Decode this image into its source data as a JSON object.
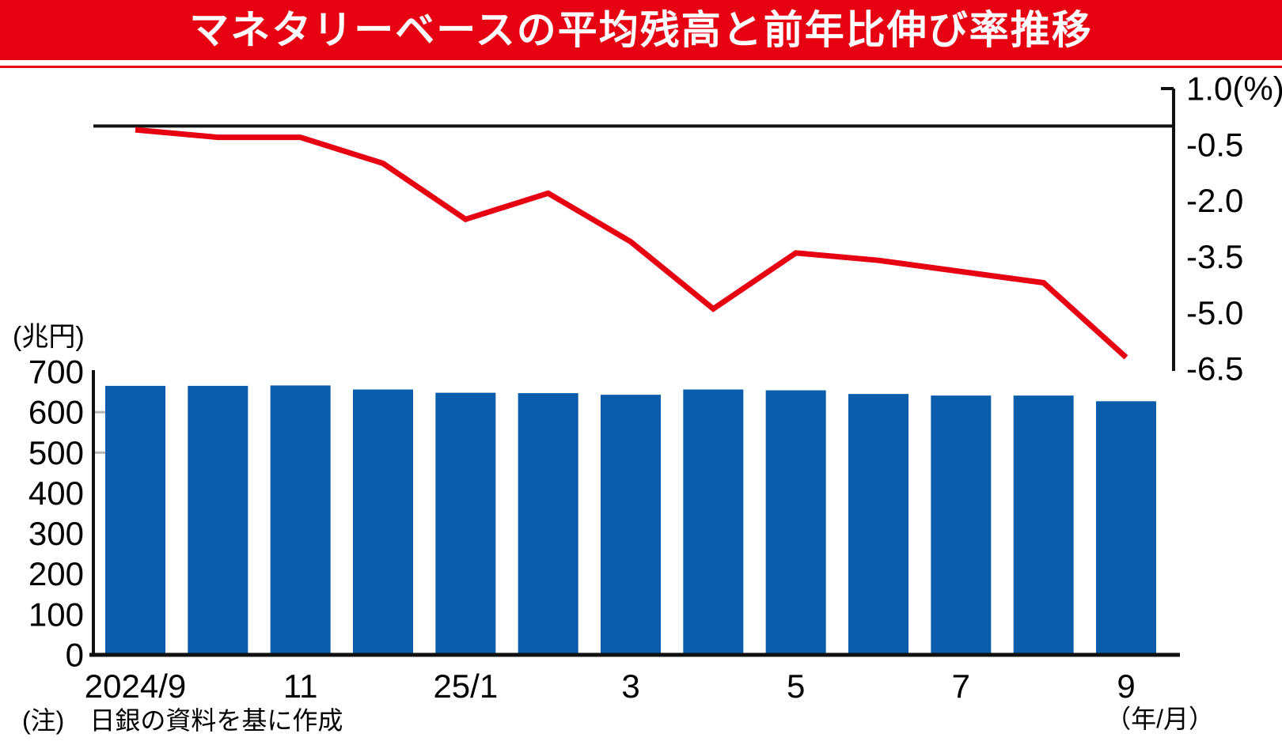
{
  "title": "マネタリーベースの平均残高と前年比伸び率推移",
  "note": "(注)　日銀の資料を基に作成",
  "x_axis_unit": "（年/月）",
  "left_axis_unit": "(兆円)",
  "colors": {
    "banner_red": "#e60012",
    "bar_blue": "#0a5dab",
    "line_red": "#e60012",
    "axis_black": "#111111",
    "minor_tick_gray": "#b5b5b5"
  },
  "chart_data": {
    "type": "bar+line dual-axis",
    "categories": [
      "2024/9",
      "2024/10",
      "2024/11",
      "2024/12",
      "2025/1",
      "2025/2",
      "2025/3",
      "2025/4",
      "2025/5",
      "2025/6",
      "2025/7",
      "2025/8",
      "2025/9"
    ],
    "series": [
      {
        "name": "マネタリーベース平均残高",
        "type": "bar",
        "axis": "left",
        "unit": "兆円",
        "values": [
          665,
          665,
          666,
          656,
          648,
          647,
          643,
          656,
          654,
          645,
          641,
          641,
          627
        ]
      },
      {
        "name": "前年比伸び率",
        "type": "line",
        "axis": "right",
        "unit": "%",
        "values": [
          -0.1,
          -0.3,
          -0.3,
          -1.0,
          -2.5,
          -1.8,
          -3.1,
          -4.9,
          -3.4,
          -3.6,
          -3.9,
          -4.2,
          -6.2
        ]
      }
    ],
    "left_axis": {
      "unit_label": "(兆円)",
      "min": 0,
      "max": 700,
      "ticks": [
        0,
        100,
        200,
        300,
        400,
        500,
        600,
        700
      ],
      "minor_marked_ticks": [
        500,
        600
      ]
    },
    "right_axis": {
      "min": -6.5,
      "max": 1.0,
      "ticks": [
        1.0,
        -0.5,
        -2.0,
        -3.5,
        -5.0,
        -6.5
      ],
      "tick_labels": [
        "1.0(%)",
        "-0.5",
        "-2.0",
        "-3.5",
        "-5.0",
        "-6.5"
      ],
      "zero_line": 0
    },
    "x_axis": {
      "unit_label": "（年/月）",
      "tick_labels": [
        "2024/9",
        "11",
        "25/1",
        "3",
        "5",
        "7",
        "9"
      ],
      "tick_category_indices": [
        0,
        2,
        4,
        6,
        8,
        10,
        12
      ]
    },
    "grid": "off",
    "legend": "none"
  }
}
